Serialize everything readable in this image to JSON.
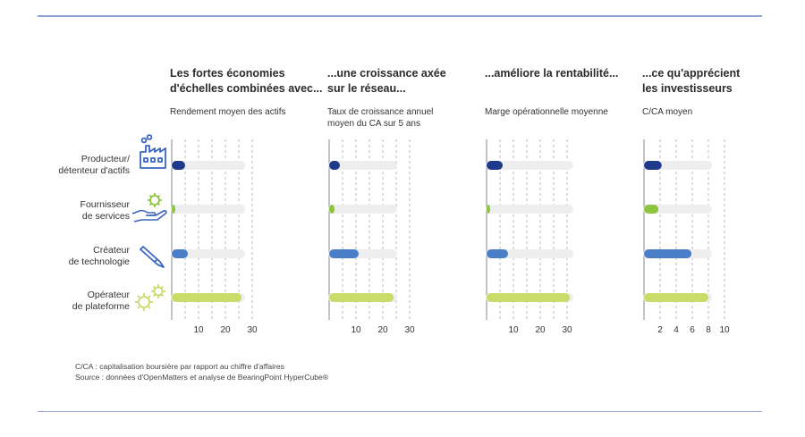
{
  "categories": [
    {
      "label_line1": "Producteur/",
      "label_line2": "détenteur d'actifs",
      "icon": "factory-icon"
    },
    {
      "label_line1": "Fournisseur",
      "label_line2": "de services",
      "icon": "service-hand-gear-icon"
    },
    {
      "label_line1": "Créateur",
      "label_line2": "de technologie",
      "icon": "pencil-icon"
    },
    {
      "label_line1": "Opérateur",
      "label_line2": "de plateforme",
      "icon": "gears-icon"
    }
  ],
  "colors": {
    "bars": [
      "#1f3a8a",
      "#8fc43f",
      "#4a7fc8",
      "#c9dc6a"
    ],
    "track": "#eeeeee",
    "icon": "#3a66c0",
    "icon_green": "#8fc43f",
    "rule": "#8fa2d8"
  },
  "chart_data": [
    {
      "type": "bar",
      "title_line1": "Les fortes économies",
      "title_line2": "d'échelles combinées avec...",
      "subtitle_line1": "Rendement moyen des actifs",
      "subtitle_line2": "",
      "categories": [
        "Producteur/détenteur d'actifs",
        "Fournisseur de services",
        "Créateur de technologie",
        "Opérateur de plateforme"
      ],
      "values": [
        5,
        1,
        6,
        26
      ],
      "xlim": [
        0,
        30
      ],
      "xticks": [
        "10",
        "20",
        "30"
      ],
      "xtick_values": [
        10,
        20,
        30
      ],
      "grid_values": [
        5,
        10,
        15,
        20,
        25,
        30
      ],
      "track_max": 26
    },
    {
      "type": "bar",
      "title_line1": "...une croissance axée",
      "title_line2": "sur le réseau...",
      "subtitle_line1": "Taux de croissance annuel",
      "subtitle_line2": "moyen du CA sur 5 ans",
      "categories": [
        "Producteur/détenteur d'actifs",
        "Fournisseur de services",
        "Créateur de technologie",
        "Opérateur de plateforme"
      ],
      "values": [
        4,
        2,
        11,
        24
      ],
      "xlim": [
        0,
        30
      ],
      "xticks": [
        "10",
        "20",
        "30"
      ],
      "xtick_values": [
        10,
        20,
        30
      ],
      "grid_values": [
        5,
        10,
        15,
        20,
        25,
        30
      ],
      "track_max": 24
    },
    {
      "type": "bar",
      "title_line1": "...améliore la rentabilité...",
      "title_line2": "",
      "subtitle_line1": "Marge opérationnelle moyenne",
      "subtitle_line2": "",
      "categories": [
        "Producteur/détenteur d'actifs",
        "Fournisseur de services",
        "Créateur de technologie",
        "Opérateur de plateforme"
      ],
      "values": [
        6,
        1,
        8,
        31
      ],
      "xlim": [
        0,
        30
      ],
      "xticks": [
        "10",
        "20",
        "30"
      ],
      "xtick_values": [
        10,
        20,
        30
      ],
      "grid_values": [
        5,
        10,
        15,
        20,
        25,
        30
      ],
      "track_max": 31
    },
    {
      "type": "bar",
      "title_line1": "...ce qu'apprécient",
      "title_line2": "les investisseurs",
      "subtitle_line1": "C/CA moyen",
      "subtitle_line2": "",
      "categories": [
        "Producteur/détenteur d'actifs",
        "Fournisseur de services",
        "Créateur de technologie",
        "Opérateur de plateforme"
      ],
      "values": [
        2.2,
        1.8,
        5.9,
        8
      ],
      "xlim": [
        0,
        10
      ],
      "xticks": [
        "2",
        "4",
        "6",
        "8",
        "10"
      ],
      "xtick_values": [
        2,
        4,
        6,
        8,
        10
      ],
      "grid_values": [
        2,
        4,
        6,
        8,
        10
      ],
      "track_max": 8
    }
  ],
  "notes": {
    "line1": "C/CA : capitalisation boursière par rapport au chiffre d'affaires",
    "line2": "Source : données d'OpenMatters et analyse de BearingPoint HyperCube®"
  }
}
